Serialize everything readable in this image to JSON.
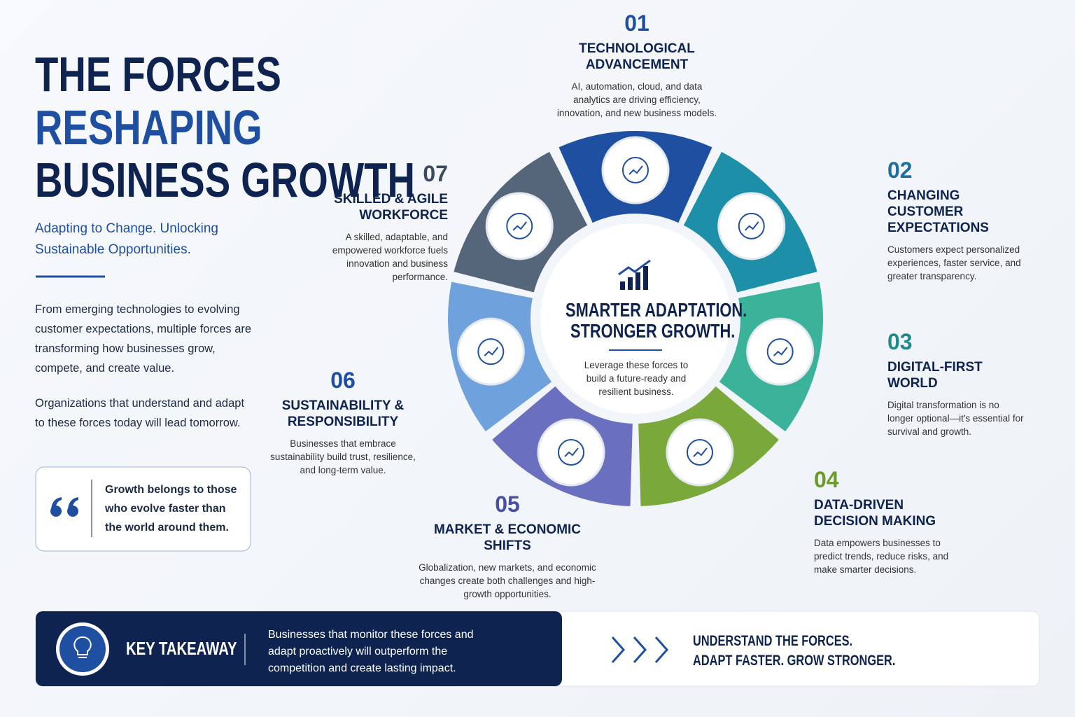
{
  "header": {
    "title_lines": [
      "THE FORCES",
      "RESHAPING",
      "BUSINESS GROWTH"
    ],
    "subtitle": "Adapting to Change. Unlocking Sustainable Opportunities.",
    "intro": [
      "From emerging technologies to evolving customer expectations, multiple forces are transforming how businesses grow, compete, and create value.",
      "Organizations that understand and adapt to these forces today will lead tomorrow."
    ],
    "quote": "Growth belongs to those who evolve faster than the world around them."
  },
  "center": {
    "headline": [
      "SMARTER ADAPTATION.",
      "STRONGER GROWTH."
    ],
    "text": "Leverage these forces to build a future-ready and resilient business."
  },
  "forces": [
    {
      "number": "01",
      "title": "TECHNOLOGICAL ADVANCEMENT",
      "description": "AI, automation, cloud, and data analytics are driving efficiency, innovation, and new business models."
    },
    {
      "number": "02",
      "title": "CHANGING CUSTOMER EXPECTATIONS",
      "description": "Customers expect personalized experiences, faster service, and greater transparency."
    },
    {
      "number": "03",
      "title": "DIGITAL-FIRST WORLD",
      "description": "Digital transformation is no longer optional—it's essential for survival and growth."
    },
    {
      "number": "04",
      "title": "DATA-DRIVEN DECISION MAKING",
      "description": "Data empowers businesses to predict trends, reduce risks, and make smarter decisions."
    },
    {
      "number": "05",
      "title": "MARKET & ECONOMIC SHIFTS",
      "description": "Globalization, new markets, and economic changes create both challenges and high-growth opportunities."
    },
    {
      "number": "06",
      "title": "SUSTAINABILITY & RESPONSIBILITY",
      "description": "Businesses that embrace sustainability build trust, resilience, and long-term value."
    },
    {
      "number": "07",
      "title": "SKILLED & AGILE WORKFORCE",
      "description": "A skilled, adaptable, and empowered workforce fuels innovation and business performance."
    }
  ],
  "takeaway": {
    "label": "KEY TAKEAWAY",
    "text": "Businesses that monitor these forces and adapt proactively will outperform the competition and create lasting impact.",
    "slogan": [
      "UNDERSTAND THE FORCES.",
      "ADAPT FASTER. GROW STRONGER."
    ]
  }
}
